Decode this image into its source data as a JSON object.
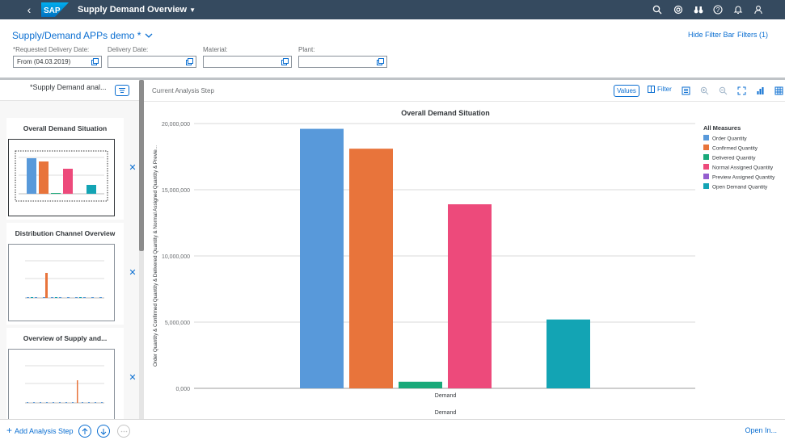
{
  "shell": {
    "logo_text": "SAP",
    "title": "Supply Demand Overview",
    "icons": [
      "search-icon",
      "copilot-icon",
      "binoculars-icon",
      "help-icon",
      "bell-icon",
      "user-icon"
    ]
  },
  "header": {
    "variant_name": "Supply/Demand APPs demo *",
    "hide_filter_bar": "Hide Filter Bar",
    "filters": "Filters (1)",
    "fields": [
      {
        "label": "*Requested Delivery Date:",
        "value": ""
      },
      {
        "label": "Delivery Date:",
        "value": ""
      },
      {
        "label": "Material:",
        "value": ""
      },
      {
        "label": "Plant:",
        "value": ""
      }
    ],
    "requested_value": "From (04.03.2019)"
  },
  "left_panel": {
    "path_name": "*Supply Demand anal...",
    "steps": [
      {
        "title": "Overall Demand Situation"
      },
      {
        "title": "Distribution Channel Overview"
      },
      {
        "title": "Overview of Supply and..."
      }
    ]
  },
  "toolbar": {
    "step_label": "Current Analysis Step",
    "values_label": "Values",
    "filter_label": "Filter"
  },
  "chart_data": {
    "type": "bar",
    "title": "Overall Demand Situation",
    "xlabel": "Demand",
    "ylabel": "Order Quantity & Confirmed Quantity & Delivered Quantity & Normal Assigned Quantity & Previe...",
    "categories": [
      "Demand"
    ],
    "ylim": [
      0,
      20000000
    ],
    "yticks": [
      "0,000",
      "5,000,000",
      "10,000,000",
      "15,000,000",
      "20,000,000"
    ],
    "legend_title": "All Measures",
    "legend_position": "right",
    "series": [
      {
        "name": "Order Quantity",
        "color": "#5899da",
        "values": [
          19600000
        ]
      },
      {
        "name": "Confirmed Quantity",
        "color": "#e8743b",
        "values": [
          18100000
        ]
      },
      {
        "name": "Delivered Quantity",
        "color": "#19a979",
        "values": [
          500000
        ]
      },
      {
        "name": "Normal Assigned Quantity",
        "color": "#ed4a7b",
        "values": [
          13900000
        ]
      },
      {
        "name": "Preview Assigned Quantity",
        "color": "#945ecf",
        "values": [
          0
        ]
      },
      {
        "name": "Open Demand Quantity",
        "color": "#13a4b4",
        "values": [
          5200000
        ]
      }
    ]
  },
  "footer": {
    "add_step": "Add Analysis Step",
    "open_in": "Open In..."
  }
}
